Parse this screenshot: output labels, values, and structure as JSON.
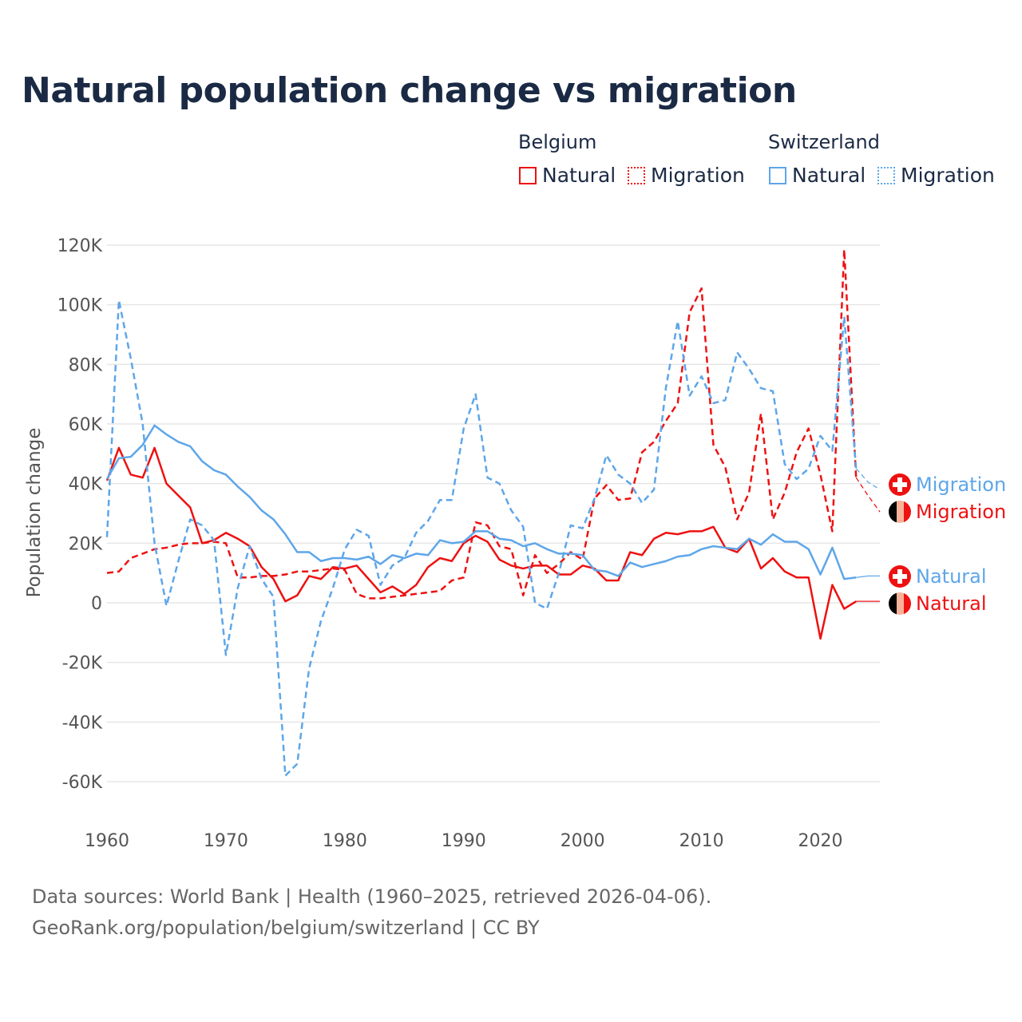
{
  "title": "Natural population change vs migration",
  "legend": {
    "groups": [
      {
        "name": "Belgium",
        "items": [
          {
            "label": "Natural",
            "style": "solid"
          },
          {
            "label": "Migration",
            "style": "dotted"
          }
        ],
        "color": "#ee1111"
      },
      {
        "name": "Switzerland",
        "items": [
          {
            "label": "Natural",
            "style": "solid"
          },
          {
            "label": "Migration",
            "style": "dotted"
          }
        ],
        "color": "#5ea6e9"
      }
    ]
  },
  "footer": {
    "line1": "Data sources: World Bank | Health (1960–2025, retrieved 2026-04-06).",
    "line2": "GeoRank.org/population/belgium/switzerland | CC BY"
  },
  "chart_data": {
    "type": "line",
    "title": "Natural population change vs migration",
    "xlabel": "",
    "ylabel": "Population change",
    "xlim": [
      1960,
      2025
    ],
    "ylim": [
      -60000,
      120000
    ],
    "x_ticks": [
      1960,
      1970,
      1980,
      1990,
      2000,
      2010,
      2020
    ],
    "x_tick_labels": [
      "1960",
      "1970",
      "1980",
      "1990",
      "2000",
      "2010",
      "2020"
    ],
    "y_ticks": [
      120000,
      100000,
      80000,
      60000,
      40000,
      20000,
      0,
      -20000,
      -40000,
      -60000
    ],
    "y_tick_labels": [
      "120K",
      "100K",
      "80K",
      "60K",
      "40K",
      "20K",
      "0",
      "-20K",
      "-40K",
      "-60K"
    ],
    "grid": true,
    "legend_position": "top-right",
    "last_reported_year": 2023,
    "x_start": 1960,
    "series": [
      {
        "name": "Belgium Natural",
        "end_label": "Natural",
        "country": "Belgium",
        "color": "#ee1111",
        "dash": false,
        "values": [
          41000,
          52000,
          43000,
          42000,
          52000,
          40000,
          36000,
          32000,
          20000,
          21000,
          23500,
          21500,
          19000,
          12000,
          8000,
          500,
          2500,
          9000,
          8000,
          12000,
          11500,
          12500,
          8000,
          3500,
          5500,
          3000,
          6000,
          12000,
          15000,
          14000,
          20000,
          22500,
          20500,
          14500,
          12500,
          11500,
          12500,
          12500,
          9500,
          9500,
          12500,
          11500,
          7500,
          7500,
          17000,
          16000,
          21500,
          23500,
          23000,
          24000,
          24000,
          25500,
          18500,
          17000,
          21500,
          11500,
          15000,
          10500,
          8500,
          8500,
          -12000,
          6000,
          -2000,
          500,
          500,
          500
        ]
      },
      {
        "name": "Belgium Migration",
        "end_label": "Migration",
        "country": "Belgium",
        "color": "#ee1111",
        "dash": true,
        "values": [
          10000,
          10500,
          15000,
          16500,
          18000,
          18500,
          19500,
          20000,
          20000,
          20500,
          20000,
          8500,
          8500,
          9000,
          9000,
          9500,
          10500,
          10500,
          11000,
          11500,
          11000,
          3000,
          1500,
          1500,
          2000,
          2500,
          3000,
          3500,
          4000,
          7500,
          8500,
          27000,
          26000,
          19000,
          18000,
          2500,
          16000,
          10000,
          13000,
          17000,
          14500,
          35000,
          39500,
          34500,
          35000,
          50500,
          54000,
          61000,
          67000,
          97500,
          105500,
          53000,
          45500,
          28000,
          37000,
          63500,
          28000,
          37000,
          50500,
          58500,
          43000,
          24000,
          118500,
          42000,
          36000,
          30500
        ]
      },
      {
        "name": "Switzerland Natural",
        "end_label": "Natural",
        "country": "Switzerland",
        "color": "#5ea6e9",
        "dash": false,
        "values": [
          41500,
          48500,
          49000,
          53000,
          59500,
          56500,
          54000,
          52500,
          47500,
          44500,
          43000,
          39000,
          35500,
          31000,
          28000,
          23000,
          17000,
          17000,
          14000,
          15000,
          15000,
          14500,
          15500,
          13000,
          16000,
          15000,
          16500,
          16000,
          21000,
          20000,
          20500,
          24000,
          24000,
          21500,
          21000,
          19000,
          20000,
          18000,
          16500,
          16500,
          16000,
          11000,
          10500,
          9000,
          13500,
          12000,
          13000,
          14000,
          15500,
          16000,
          18000,
          19000,
          18500,
          18000,
          21500,
          19500,
          23000,
          20500,
          20500,
          18000,
          9500,
          18500,
          8000,
          8500,
          9000,
          9000
        ]
      },
      {
        "name": "Switzerland Migration",
        "end_label": "Migration",
        "country": "Switzerland",
        "color": "#5ea6e9",
        "dash": true,
        "values": [
          22000,
          101500,
          82000,
          60000,
          20000,
          -1000,
          14000,
          28000,
          26000,
          21000,
          -17500,
          5000,
          19000,
          8000,
          2000,
          -58000,
          -54000,
          -22000,
          -6000,
          5000,
          18000,
          24500,
          22500,
          6000,
          12500,
          15000,
          23500,
          27500,
          34500,
          34500,
          58500,
          70000,
          42000,
          40000,
          31000,
          25500,
          0,
          -2000,
          10000,
          26000,
          25000,
          35000,
          49500,
          43000,
          40000,
          33500,
          38000,
          72000,
          94500,
          69500,
          76000,
          67000,
          68000,
          84000,
          78500,
          72000,
          71000,
          46500,
          41500,
          45000,
          56000,
          51000,
          96000,
          45000,
          40500,
          38000
        ]
      }
    ]
  }
}
